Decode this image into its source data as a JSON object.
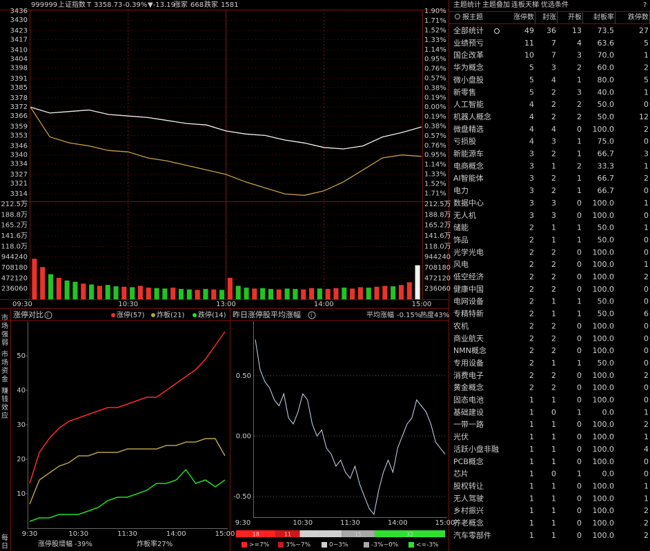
{
  "header": {
    "code": "999999",
    "name": "上证指数",
    "flag": "T",
    "price": "3358.73",
    "change_pct": "-0.39%",
    "change": "▼-13.19",
    "up_label": "涨家",
    "up": "668",
    "down_label": "跌家",
    "down": "1581"
  },
  "side_tabs": [
    "市场强弱",
    "市场资金",
    "赚钱效应",
    "每日"
  ],
  "chart_data": [
    {
      "type": "line",
      "categories": [
        "09:30",
        null,
        null,
        null,
        null,
        "10:30",
        null,
        null,
        null,
        null,
        "13:00",
        null,
        null,
        null,
        null,
        "14:00",
        null,
        null,
        null,
        null,
        "15:00"
      ],
      "series": [
        {
          "color": "#f2f2f2",
          "values": [
            3372,
            3368,
            3369,
            3370,
            3367,
            3366,
            3365,
            3363,
            3361,
            3360,
            3356,
            3354,
            3353,
            3350,
            3348,
            3345,
            3344,
            3346,
            3352,
            3355,
            3358.73
          ]
        },
        {
          "color": "#c9a040",
          "values": [
            3372,
            3352,
            3348,
            3346,
            3343,
            3342,
            3338,
            3336,
            3333,
            3330,
            3327,
            3322,
            3318,
            3314,
            3313,
            3316,
            3322,
            3330,
            3338,
            3340,
            3339
          ]
        }
      ],
      "ylim": [
        3309,
        3437
      ],
      "yticks": [
        3436,
        3430,
        3423,
        3417,
        3410,
        3404,
        3398,
        3391,
        3385,
        3378,
        3372,
        3366,
        3359,
        3353,
        3346,
        3340,
        3334,
        3327,
        3321,
        3314
      ],
      "y2lim": [
        -1.87,
        1.93
      ],
      "y2ticks": [
        {
          "value": 1.9,
          "label": "1.90%"
        },
        {
          "value": 1.71,
          "label": "1.71%"
        },
        {
          "value": 1.52,
          "label": "1.52%"
        },
        {
          "value": 1.33,
          "label": "1.33%"
        },
        {
          "value": 1.14,
          "label": "1.14%"
        },
        {
          "value": 0.95,
          "label": "0.95%"
        },
        {
          "value": 0.76,
          "label": "0.76%"
        },
        {
          "value": 0.57,
          "label": "0.57%"
        },
        {
          "value": 0.38,
          "label": "0.38%"
        },
        {
          "value": 0.19,
          "label": "0.19%"
        },
        {
          "value": 0,
          "label": "0.00%"
        },
        {
          "value": -0.19,
          "label": "0.19%"
        },
        {
          "value": -0.38,
          "label": "0.38%"
        },
        {
          "value": -0.57,
          "label": "0.57%"
        },
        {
          "value": -0.76,
          "label": "0.76%"
        },
        {
          "value": -0.95,
          "label": "0.95%"
        },
        {
          "value": -1.14,
          "label": "1.14%"
        },
        {
          "value": -1.33,
          "label": "1.33%"
        },
        {
          "value": -1.52,
          "label": "1.52%"
        },
        {
          "value": -1.71,
          "label": "1.71%"
        }
      ],
      "grid": true
    },
    {
      "type": "bar",
      "values": [
        905000,
        720000,
        560000,
        480000,
        420000,
        390000,
        350000,
        330000,
        300000,
        320000,
        290000,
        280000,
        270000,
        300000,
        260000,
        250000,
        240000,
        260000,
        230000,
        220000,
        210000,
        230000,
        220000,
        210000,
        480000,
        300000,
        260000,
        240000,
        250000,
        230000,
        220000,
        240000,
        230000,
        220000,
        250000,
        240000,
        230000,
        250000,
        260000,
        240000,
        270000,
        260000,
        280000,
        300000,
        290000,
        320000,
        380000,
        760000
      ],
      "colors": [
        "#e8332a",
        "#e8332a",
        "#22c322",
        "#e8332a",
        "#22c322",
        "#22c322",
        "#e8332a",
        "#22c322",
        "#e8332a",
        "#22c322",
        "#22c322",
        "#e8332a",
        "#22c322",
        "#e8332a",
        "#e8332a",
        "#22c322",
        "#22c322",
        "#e8332a",
        "#22c322",
        "#22c322",
        "#e8332a",
        "#22c322",
        "#e8332a",
        "#22c322",
        "#e8332a",
        "#22c322",
        "#22c322",
        "#e8332a",
        "#22c322",
        "#22c322",
        "#e8332a",
        "#22c322",
        "#22c322",
        "#e8332a",
        "#e8332a",
        "#22c322",
        "#e8332a",
        "#e8332a",
        "#22c322",
        "#e8332a",
        "#e8332a",
        "#22c322",
        "#e8332a",
        "#e8332a",
        "#22c322",
        "#e8332a",
        "#e8332a",
        "#f2f2f2"
      ],
      "ylim": [
        0,
        2124540
      ],
      "yticks": [
        {
          "value": 2124540,
          "label": "212.5万"
        },
        {
          "value": 1888480,
          "label": "188.8万"
        },
        {
          "value": 1652420,
          "label": "165.2万"
        },
        {
          "value": 1416360,
          "label": "141.6万"
        },
        {
          "value": 1180300,
          "label": "118.0万"
        },
        944240,
        708180,
        472120,
        236060
      ]
    },
    {
      "type": "line",
      "title": "涨停对比",
      "categories": [
        "9:30",
        null,
        null,
        null,
        null,
        "10:30",
        null,
        null,
        null,
        null,
        "11:30",
        null,
        null,
        null,
        null,
        "14:00",
        null,
        null,
        null,
        null,
        "15:00"
      ],
      "series": [
        {
          "name": "涨停(57)",
          "color": "#ff2a2a",
          "values": [
            13,
            22,
            26,
            29,
            31,
            32,
            33,
            34,
            35,
            35,
            36,
            37,
            38,
            38,
            40,
            42,
            44,
            46,
            49,
            53,
            57
          ]
        },
        {
          "name": "炸板(21)",
          "color": "#b8a048",
          "values": [
            7,
            14,
            16,
            18,
            19,
            21,
            21,
            22,
            22,
            22,
            23,
            23,
            23,
            23,
            24,
            24,
            25,
            25,
            26,
            26,
            21
          ]
        },
        {
          "name": "跌停(14)",
          "color": "#22e022",
          "values": [
            2,
            3,
            3,
            4,
            4,
            4,
            5,
            6,
            8,
            9,
            9,
            10,
            11,
            13,
            13,
            14,
            17,
            13,
            14,
            12,
            14
          ]
        }
      ],
      "ylim": [
        0,
        60
      ],
      "yticks": [
        10,
        20,
        30,
        40,
        50
      ],
      "annotations": [
        {
          "label": "涨停股增幅",
          "value": "-39%"
        },
        {
          "label": "炸板率",
          "value": "27%"
        }
      ]
    },
    {
      "type": "line",
      "title": "昨日涨停股平均涨幅",
      "annotations": [
        {
          "label": "平均涨幅",
          "value": "-0.15%"
        },
        {
          "label": "热度43%"
        }
      ],
      "categories": [
        "9:30",
        null,
        null,
        null,
        null,
        null,
        null,
        null,
        null,
        null,
        "10:30",
        null,
        null,
        null,
        null,
        null,
        null,
        null,
        null,
        null,
        "11:30",
        null,
        null,
        null,
        null,
        null,
        null,
        null,
        null,
        null,
        "14:00",
        null,
        null,
        null,
        null,
        null,
        null,
        null,
        null,
        null,
        "15:00"
      ],
      "series": [
        {
          "color": "#b8c8dc",
          "values": [
            0.8,
            0.55,
            0.45,
            0.4,
            0.3,
            0.25,
            0.35,
            0.15,
            0.1,
            0.2,
            0.35,
            0.3,
            0.1,
            0.0,
            0.05,
            -0.1,
            -0.15,
            -0.25,
            -0.2,
            -0.3,
            -0.35,
            -0.25,
            -0.4,
            -0.5,
            -0.6,
            -0.65,
            -0.45,
            -0.3,
            -0.2,
            -0.3,
            -0.1,
            0.0,
            0.1,
            0.15,
            0.3,
            0.25,
            0.2,
            0.1,
            -0.05,
            -0.1,
            -0.15
          ]
        }
      ],
      "ylim": [
        -0.73,
        0.95
      ],
      "yticks": [
        {
          "value": 0.5,
          "label": "0.50"
        },
        {
          "value": 0,
          "label": "0.00"
        },
        {
          "value": -0.5,
          "label": "-0.50"
        }
      ],
      "grid": true
    },
    {
      "type": "stacked_bar",
      "categories": [
        ">=7%",
        "3%~7%",
        "0~3%",
        "-3%~0%",
        "<=-3%"
      ],
      "values": [
        18,
        11,
        19,
        15,
        32
      ],
      "colors": [
        "#ff2020",
        "#d01818",
        "#d0d0d0",
        "#a8a8a8",
        "#30e030"
      ]
    }
  ],
  "table": {
    "tabs": [
      "主题统计",
      "主题叠加",
      "连板天梯",
      "优选条件",
      "?"
    ],
    "columns": [
      "报主题",
      "涨停数",
      "封涨",
      "开板",
      "封板率",
      "跌停数"
    ],
    "rows": [
      [
        "全部统计",
        "49",
        "36",
        "13",
        "73.5",
        "27"
      ],
      [
        "业绩预亏",
        "11",
        "7",
        "4",
        "63.6",
        "5"
      ],
      [
        "国企改革",
        "10",
        "7",
        "3",
        "70.0",
        "1"
      ],
      [
        "华为概念",
        "5",
        "3",
        "2",
        "60.0",
        "2"
      ],
      [
        "微小盘股",
        "5",
        "4",
        "1",
        "80.0",
        "5"
      ],
      [
        "新零售",
        "5",
        "2",
        "3",
        "40.0",
        "1"
      ],
      [
        "人工智能",
        "4",
        "2",
        "2",
        "50.0",
        "0"
      ],
      [
        "机器人概念",
        "4",
        "2",
        "2",
        "50.0",
        "12"
      ],
      [
        "微盘精选",
        "4",
        "4",
        "0",
        "100.0",
        "2"
      ],
      [
        "亏损股",
        "4",
        "3",
        "1",
        "75.0",
        "0"
      ],
      [
        "新能源车",
        "3",
        "2",
        "1",
        "66.7",
        "3"
      ],
      [
        "电商概念",
        "3",
        "1",
        "2",
        "33.3",
        "1"
      ],
      [
        "AI智能体",
        "3",
        "2",
        "1",
        "66.7",
        "2"
      ],
      [
        "电力",
        "3",
        "2",
        "1",
        "66.7",
        "0"
      ],
      [
        "数据中心",
        "3",
        "3",
        "0",
        "100.0",
        "1"
      ],
      [
        "无人机",
        "3",
        "3",
        "0",
        "100.0",
        "0"
      ],
      [
        "储能",
        "2",
        "1",
        "1",
        "50.0",
        "1"
      ],
      [
        "饰品",
        "2",
        "1",
        "1",
        "50.0",
        "0"
      ],
      [
        "光学光电",
        "2",
        "2",
        "0",
        "100.0",
        "0"
      ],
      [
        "风电",
        "2",
        "2",
        "0",
        "100.0",
        "1"
      ],
      [
        "低空经济",
        "2",
        "2",
        "0",
        "100.0",
        "2"
      ],
      [
        "健康中国",
        "2",
        "2",
        "0",
        "100.0",
        "0"
      ],
      [
        "电网设备",
        "2",
        "1",
        "1",
        "50.0",
        "0"
      ],
      [
        "专精特新",
        "2",
        "1",
        "1",
        "50.0",
        "6"
      ],
      [
        "农机",
        "2",
        "2",
        "0",
        "100.0",
        "0"
      ],
      [
        "商业航天",
        "2",
        "2",
        "0",
        "100.0",
        "0"
      ],
      [
        "NMN概念",
        "2",
        "2",
        "0",
        "100.0",
        "0"
      ],
      [
        "专用设备",
        "2",
        "1",
        "1",
        "50.0",
        "0"
      ],
      [
        "消费电子",
        "2",
        "2",
        "0",
        "100.0",
        "2"
      ],
      [
        "黄金概念",
        "2",
        "2",
        "0",
        "100.0",
        "0"
      ],
      [
        "固态电池",
        "1",
        "1",
        "0",
        "100.0",
        "0"
      ],
      [
        "基础建设",
        "1",
        "0",
        "1",
        "0.0",
        "1"
      ],
      [
        "一带一路",
        "1",
        "1",
        "0",
        "100.0",
        "2"
      ],
      [
        "光伏",
        "1",
        "1",
        "0",
        "100.0",
        "1"
      ],
      [
        "活跃小盘非融",
        "1",
        "1",
        "0",
        "100.0",
        "4"
      ],
      [
        "PCB概念",
        "1",
        "1",
        "0",
        "100.0",
        "0"
      ],
      [
        "芯片",
        "1",
        "0",
        "1",
        "0.0",
        "0"
      ],
      [
        "股权转让",
        "1",
        "1",
        "0",
        "100.0",
        "1"
      ],
      [
        "无人驾驶",
        "1",
        "1",
        "0",
        "100.0",
        "1"
      ],
      [
        "乡村振兴",
        "1",
        "1",
        "0",
        "100.0",
        "2"
      ],
      [
        "养老概念",
        "1",
        "1",
        "0",
        "100.0",
        "2"
      ],
      [
        "汽车零部件",
        "1",
        "1",
        "0",
        "100.0",
        "2"
      ]
    ]
  }
}
